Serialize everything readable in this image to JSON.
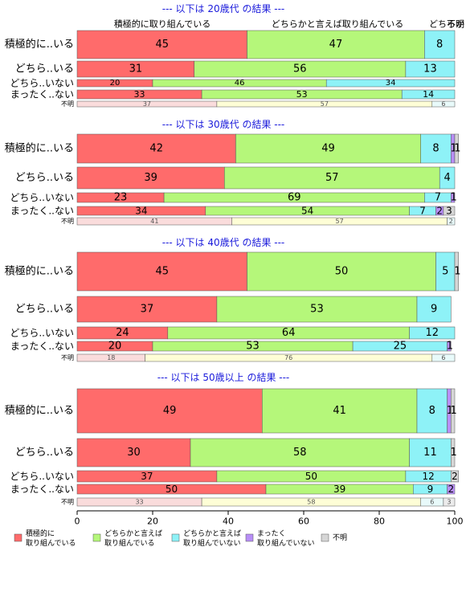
{
  "chart_data": {
    "type": "bar",
    "orientation": "horizontal-stacked",
    "xlim": [
      0,
      100
    ],
    "x_ticks": [
      "0",
      "20",
      "40",
      "60",
      "80",
      "100"
    ],
    "grid": false,
    "legend_position": "bottom",
    "series": [
      {
        "name": "積極的に\n取り組んでいる",
        "color": "#ff6b6b"
      },
      {
        "name": "どちらかと言えば\n取り組んでいる",
        "color": "#b5f77a"
      },
      {
        "name": "どちらかと言えば\n取り組んでいない",
        "color": "#8ef2f7"
      },
      {
        "name": "まったく\n取り組んでいない",
        "color": "#b88ef7"
      },
      {
        "name": "不明",
        "color": "#d6d6d6"
      }
    ],
    "top_header_labels": [
      "積極的に取り組んでいる",
      "どちらかと言えば取り組んでいる",
      "どちらかと言えば取り組んでいない",
      "不明"
    ],
    "panels": [
      {
        "title": "--- 以下は 20歳代 の結果 ---",
        "rows": [
          {
            "label": "積極的に..いる",
            "values": [
              45,
              47,
              8,
              0,
              0
            ]
          },
          {
            "label": "どちら..いる",
            "values": [
              31,
              56,
              13,
              0,
              0
            ]
          },
          {
            "label": "どちら..いない",
            "values": [
              20,
              46,
              34,
              0,
              0
            ]
          },
          {
            "label": "まったく..ない",
            "values": [
              33,
              53,
              14,
              0,
              0
            ]
          },
          {
            "label": "不明",
            "values": [
              37,
              57,
              6,
              0,
              0
            ]
          }
        ]
      },
      {
        "title": "--- 以下は 30歳代 の結果 ---",
        "rows": [
          {
            "label": "積極的に..いる",
            "values": [
              42,
              49,
              8,
              1,
              1
            ]
          },
          {
            "label": "どちら..いる",
            "values": [
              39,
              57,
              4,
              0,
              0
            ]
          },
          {
            "label": "どちら..いない",
            "values": [
              23,
              69,
              7,
              1,
              0
            ]
          },
          {
            "label": "まったく..ない",
            "values": [
              34,
              54,
              7,
              2,
              3
            ]
          },
          {
            "label": "不明",
            "values": [
              41,
              57,
              2,
              0,
              0
            ]
          }
        ]
      },
      {
        "title": "--- 以下は 40歳代 の結果 ---",
        "rows": [
          {
            "label": "積極的に..いる",
            "values": [
              45,
              50,
              5,
              0,
              1
            ]
          },
          {
            "label": "どちら..いる",
            "values": [
              37,
              53,
              9,
              0,
              0
            ]
          },
          {
            "label": "どちら..いない",
            "values": [
              24,
              64,
              12,
              0,
              0
            ]
          },
          {
            "label": "まったく..ない",
            "values": [
              20,
              53,
              25,
              1,
              0
            ]
          },
          {
            "label": "不明",
            "values": [
              18,
              76,
              6,
              0,
              0
            ]
          }
        ]
      },
      {
        "title": "--- 以下は 50歳以上 の結果 ---",
        "rows": [
          {
            "label": "積極的に..いる",
            "values": [
              49,
              41,
              8,
              1,
              1
            ]
          },
          {
            "label": "どちら..いる",
            "values": [
              30,
              58,
              11,
              0,
              1
            ]
          },
          {
            "label": "どちら..いない",
            "values": [
              37,
              50,
              12,
              0,
              2
            ]
          },
          {
            "label": "まったく..ない",
            "values": [
              50,
              39,
              9,
              2,
              0
            ]
          },
          {
            "label": "不明",
            "values": [
              33,
              58,
              6,
              0,
              3
            ]
          }
        ]
      }
    ]
  }
}
